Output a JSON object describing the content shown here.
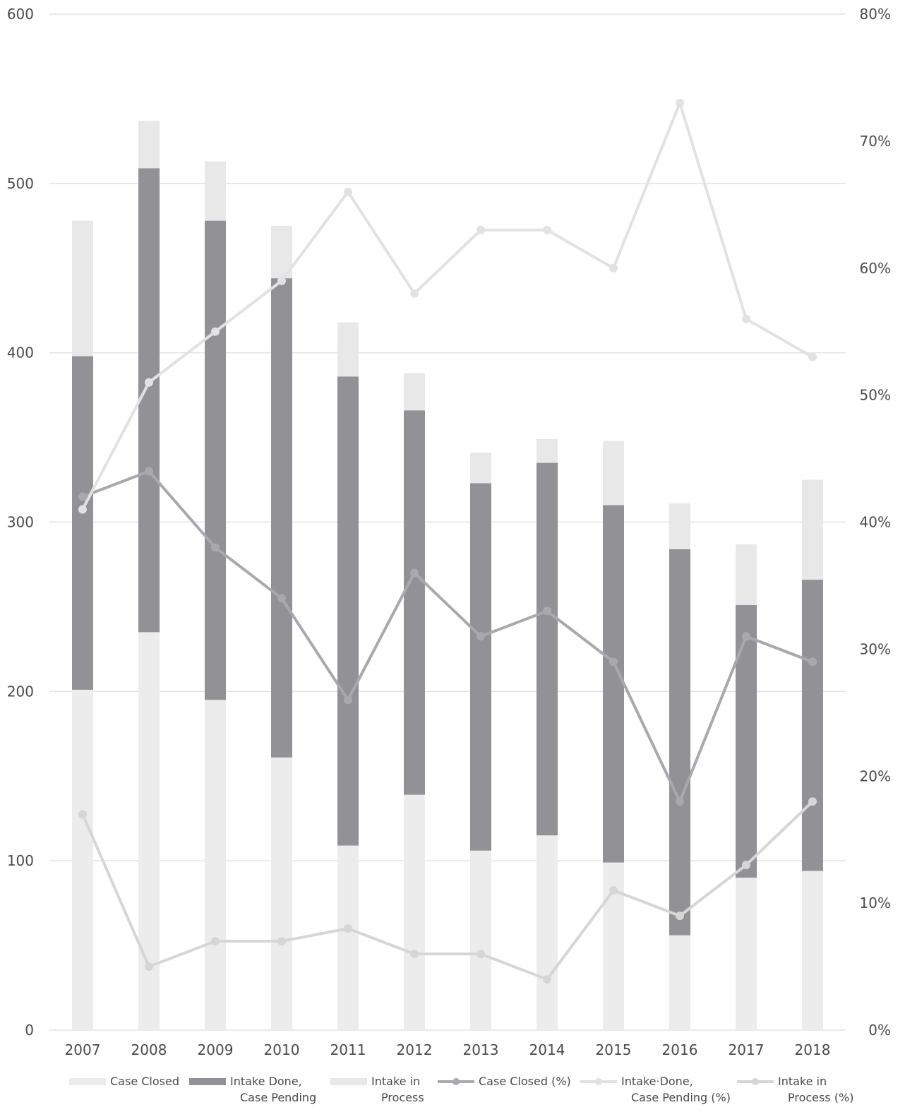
{
  "chart_data": {
    "type": "bar",
    "stacked": true,
    "title": "",
    "xlabel": "",
    "ylabel": "",
    "categories": [
      "2007",
      "2008",
      "2009",
      "2010",
      "2011",
      "2012",
      "2013",
      "2014",
      "2015",
      "2016",
      "2017",
      "2018"
    ],
    "ylim": [
      0,
      600
    ],
    "y_ticks": [
      "0",
      "100",
      "200",
      "300",
      "400",
      "500",
      "600"
    ],
    "y2lim": [
      0,
      80
    ],
    "y2_ticks": [
      "0%",
      "10%",
      "20%",
      "30%",
      "40%",
      "50%",
      "60%",
      "70%",
      "80%"
    ],
    "grid": true,
    "legend_position": "bottom",
    "series": [
      {
        "name": "Case Closed",
        "kind": "bar",
        "axis": "left",
        "color": "#ececec",
        "values": [
          201,
          235,
          195,
          161,
          109,
          139,
          106,
          115,
          99,
          56,
          90,
          94
        ]
      },
      {
        "name": "Intake Done, Case Pending",
        "kind": "bar",
        "axis": "left",
        "color": "#929296",
        "values": [
          197,
          274,
          283,
          283,
          277,
          227,
          217,
          220,
          211,
          228,
          161,
          172
        ]
      },
      {
        "name": "Intake in Process",
        "kind": "bar",
        "axis": "left",
        "color": "#e8e8e8",
        "values": [
          80,
          28,
          35,
          31,
          32,
          22,
          18,
          14,
          38,
          27,
          36,
          59
        ]
      },
      {
        "name": "Case Closed (%)",
        "kind": "line",
        "axis": "right",
        "color": "#a8a8ad",
        "values": [
          42,
          44,
          38,
          34,
          26,
          36,
          31,
          33,
          29,
          18,
          31,
          29
        ]
      },
      {
        "name": "Intake Done, Case Pending (%)",
        "kind": "line",
        "axis": "right",
        "color": "#e2e2e2",
        "values": [
          41,
          51,
          55,
          59,
          66,
          58,
          63,
          63,
          60,
          73,
          56,
          53
        ]
      },
      {
        "name": "Intake in Process (%)",
        "kind": "line",
        "axis": "right",
        "color": "#d6d6d6",
        "values": [
          17,
          5,
          7,
          7,
          8,
          6,
          6,
          4,
          11,
          9,
          13,
          18
        ]
      }
    ],
    "legend": [
      {
        "lines": [
          "Case Closed"
        ],
        "marker": "bar",
        "color": "#ececec"
      },
      {
        "lines": [
          "Intake Done,",
          "Case Pending"
        ],
        "marker": "bar",
        "color": "#929296"
      },
      {
        "lines": [
          "Intake in",
          "Process"
        ],
        "marker": "bar",
        "color": "#e8e8e8"
      },
      {
        "lines": [
          "Case Closed (%)"
        ],
        "marker": "line",
        "color": "#a8a8ad"
      },
      {
        "lines": [
          "Intake·Done,",
          "Case Pending (%)"
        ],
        "marker": "line",
        "color": "#e2e2e2"
      },
      {
        "lines": [
          "Intake in",
          "Process (%)"
        ],
        "marker": "line",
        "color": "#d6d6d6"
      }
    ]
  }
}
